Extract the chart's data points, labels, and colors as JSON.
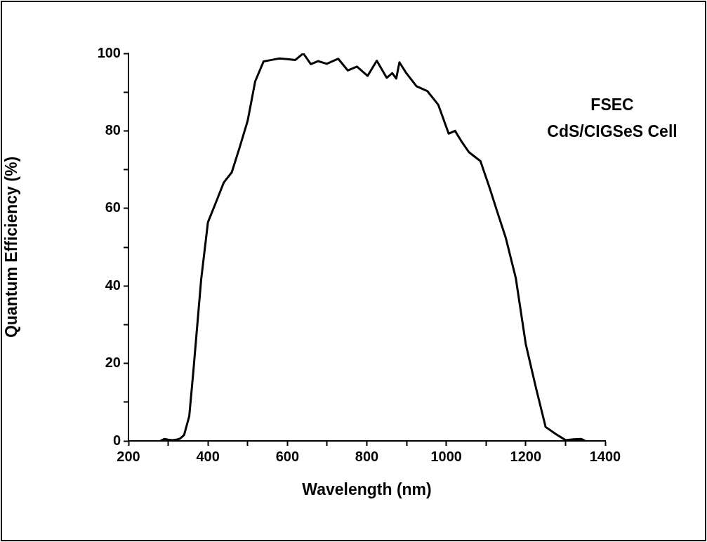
{
  "chart_data": {
    "type": "line",
    "xlabel": "Wavelength (nm)",
    "ylabel": "Quantum Efficiency (%)",
    "annotations": [
      "FSEC",
      "CdS/CIGSeS Cell"
    ],
    "xlim": [
      200,
      1400
    ],
    "xticks": [
      200,
      {
        "value": 300,
        "label": null
      },
      400,
      {
        "value": 500,
        "label": null
      },
      600,
      {
        "value": 700,
        "label": null
      },
      800,
      {
        "value": 900,
        "label": null
      },
      1000,
      {
        "value": 1100,
        "label": null
      },
      1200,
      {
        "value": 1300,
        "label": null
      },
      1400
    ],
    "ylim": [
      0,
      100
    ],
    "yticks": [
      0,
      {
        "value": 10,
        "label": null
      },
      20,
      {
        "value": 30,
        "label": null
      },
      40,
      {
        "value": 50,
        "label": null
      },
      60,
      {
        "value": 70,
        "label": null
      },
      80,
      {
        "value": 90,
        "label": null
      },
      100
    ],
    "grid": false,
    "legend": false,
    "marker": "none",
    "line_style": "solid",
    "series": [
      {
        "color": "#000000",
        "x": [
          280,
          290,
          300,
          310,
          320,
          330,
          340,
          353,
          363,
          383,
          400,
          420,
          440,
          460,
          480,
          500,
          519,
          540,
          560,
          580,
          600,
          620,
          640,
          659,
          677,
          699,
          728,
          752,
          775,
          802,
          825,
          850,
          864,
          874,
          882,
          900,
          925,
          952,
          980,
          1006,
          1022,
          1040,
          1057,
          1086,
          1110,
          1129,
          1150,
          1175,
          1200,
          1225,
          1250,
          1275,
          1300,
          1320,
          1340,
          1350
        ],
        "values": [
          0,
          0.5,
          0.3,
          0.2,
          0.3,
          0.6,
          1.5,
          6.4,
          17.6,
          41.7,
          56.4,
          61.5,
          66.7,
          69.3,
          75.8,
          82.6,
          92.8,
          97.9,
          98.3,
          98.7,
          98.5,
          98.3,
          100,
          97.2,
          98,
          97.3,
          98.6,
          95.6,
          96.6,
          94.2,
          98.1,
          93.7,
          94.9,
          93.5,
          97.7,
          94.8,
          91.5,
          90.3,
          86.7,
          79.3,
          80,
          77,
          74.5,
          72.2,
          65,
          58.9,
          52.3,
          42,
          25,
          14,
          3.6,
          1.8,
          0.2,
          0.4,
          0.5,
          0
        ]
      }
    ]
  }
}
